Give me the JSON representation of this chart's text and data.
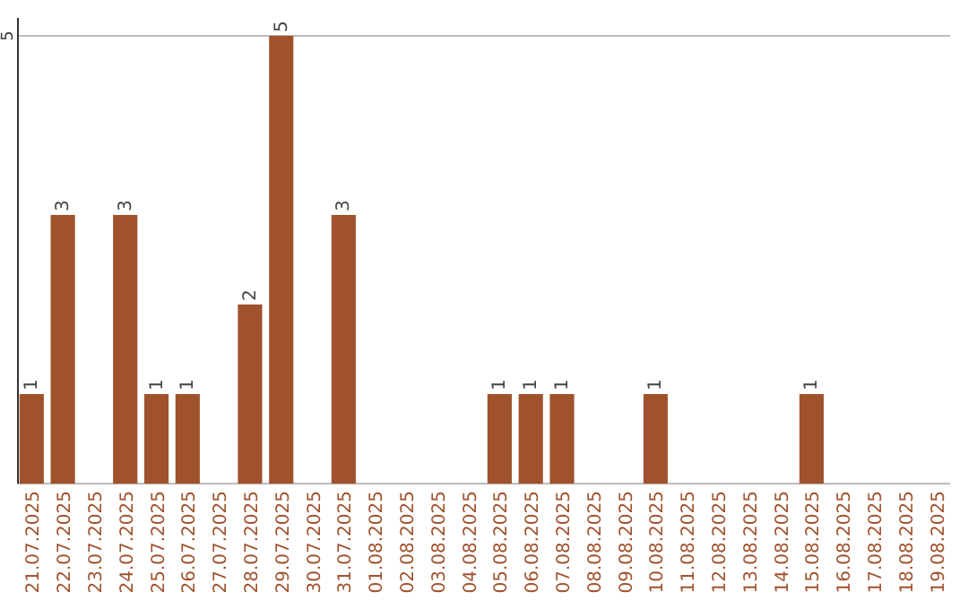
{
  "chart_data": {
    "type": "bar",
    "categories": [
      "21.07.2025",
      "22.07.2025",
      "23.07.2025",
      "24.07.2025",
      "25.07.2025",
      "26.07.2025",
      "27.07.2025",
      "28.07.2025",
      "29.07.2025",
      "30.07.2025",
      "31.07.2025",
      "01.08.2025",
      "02.08.2025",
      "03.08.2025",
      "04.08.2025",
      "05.08.2025",
      "06.08.2025",
      "07.08.2025",
      "08.08.2025",
      "09.08.2025",
      "10.08.2025",
      "11.08.2025",
      "12.08.2025",
      "13.08.2025",
      "14.08.2025",
      "15.08.2025",
      "16.08.2025",
      "17.08.2025",
      "18.08.2025",
      "19.08.2025"
    ],
    "values": [
      1,
      3,
      0,
      3,
      1,
      1,
      0,
      2,
      5,
      0,
      3,
      0,
      0,
      0,
      0,
      1,
      1,
      1,
      0,
      0,
      1,
      0,
      0,
      0,
      0,
      1,
      0,
      0,
      0,
      0
    ],
    "value_labels": [
      "1",
      "3",
      null,
      "3",
      "1",
      "1",
      null,
      "2",
      "5",
      null,
      "3",
      null,
      null,
      null,
      null,
      "1",
      "1",
      "1",
      null,
      null,
      "1",
      null,
      null,
      null,
      null,
      "1",
      null,
      null,
      null,
      null
    ],
    "color": "#a0522d",
    "ylim": [
      0,
      5.2
    ],
    "yticks": [
      {
        "value": 0,
        "label": null
      },
      5
    ],
    "grid": "y"
  }
}
